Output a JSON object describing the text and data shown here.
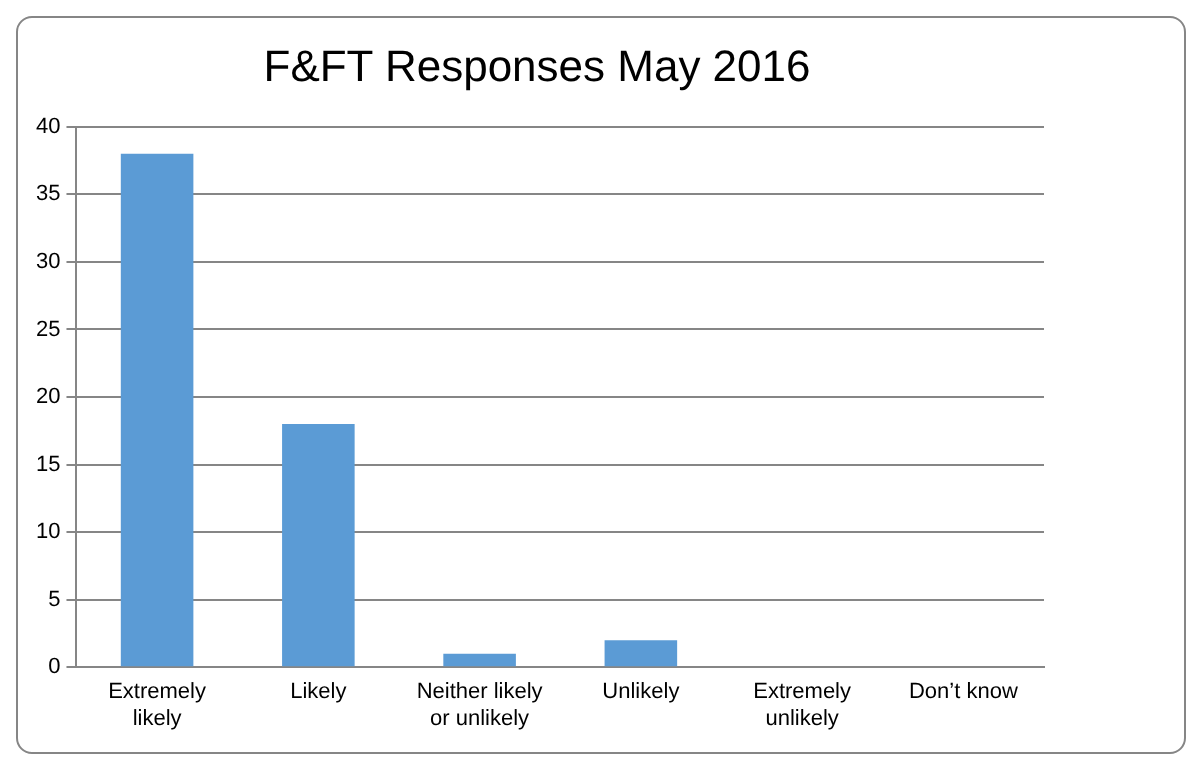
{
  "chart_data": {
    "type": "bar",
    "title": "F&FT Responses May 2016",
    "categories": [
      "Extremely likely",
      "Likely",
      "Neither likely or unlikely",
      "Unlikely",
      "Extremely unlikely",
      "Don’t know"
    ],
    "values": [
      38,
      18,
      1,
      2,
      0,
      0
    ],
    "color": "#5b9bd5",
    "ylim": [
      0,
      40
    ],
    "yticks": [
      0,
      5,
      10,
      15,
      20,
      25,
      30,
      35,
      40
    ],
    "grid": "y",
    "legend": false
  }
}
